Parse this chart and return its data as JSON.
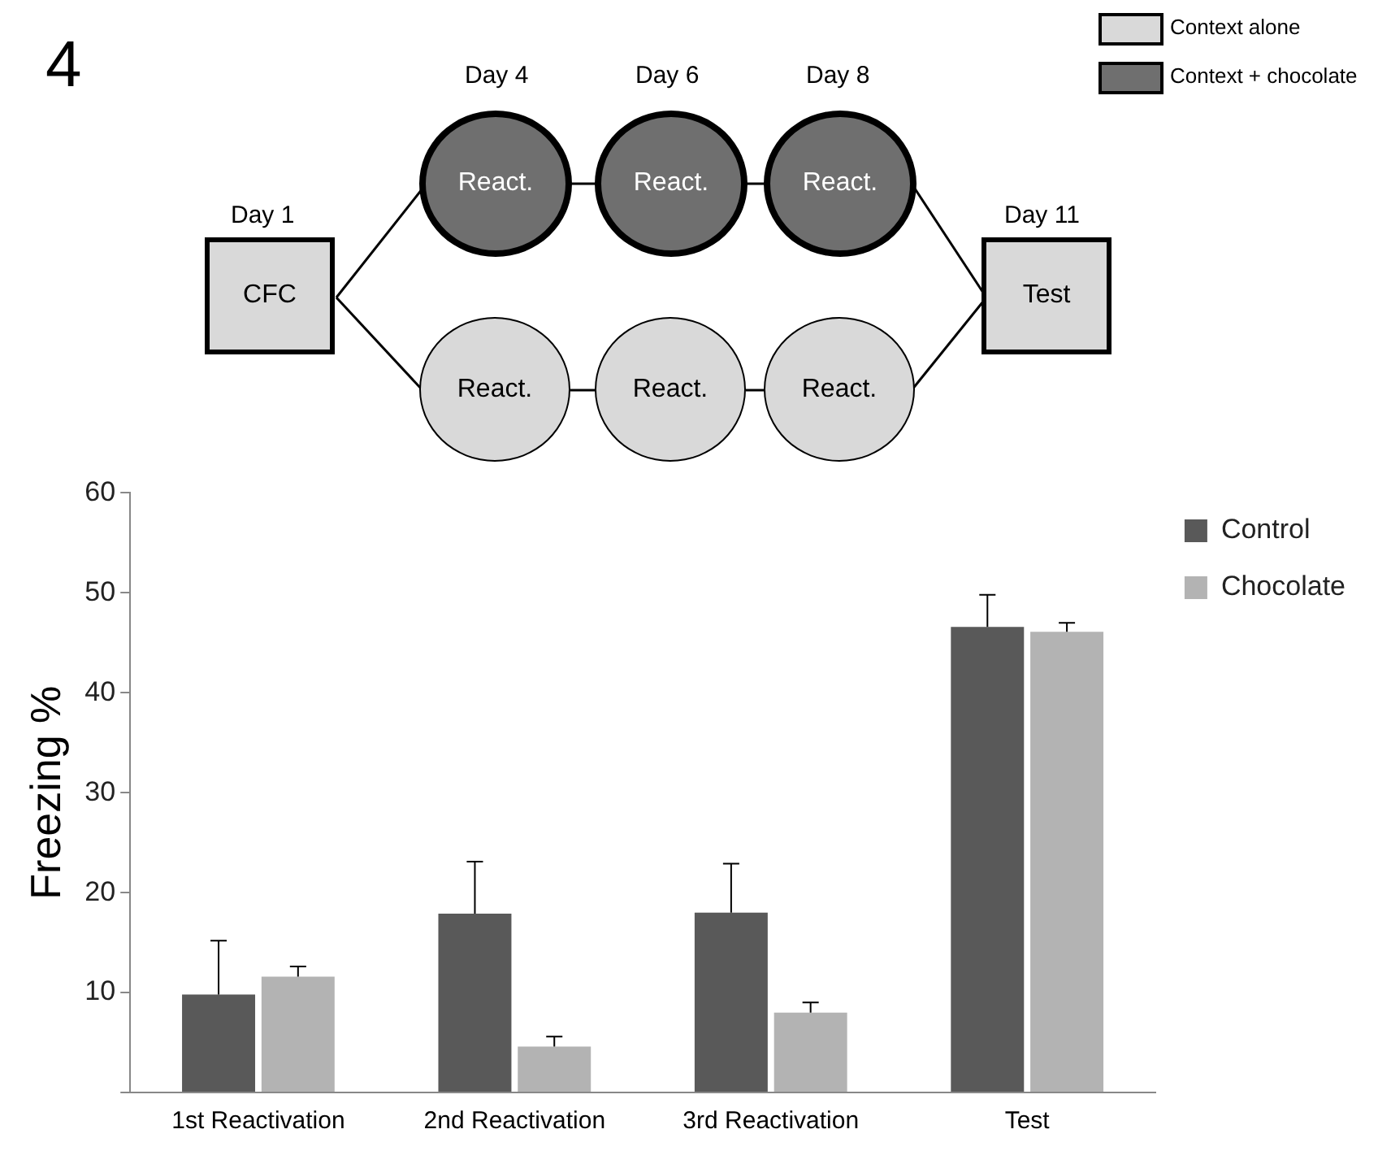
{
  "chart_data": {
    "type": "bar",
    "ylabel": "Freezing %",
    "categories": [
      "1st Reactivation",
      "2nd Reactivation",
      "3rd Reactivation",
      "Test"
    ],
    "series": [
      {
        "name": "Control",
        "color": "#595959",
        "values": [
          9.8,
          17.9,
          18.0,
          46.6
        ],
        "errors": [
          [
            9.8,
            15.2
          ],
          [
            17.9,
            23.1
          ],
          [
            18.0,
            22.9
          ],
          [
            46.6,
            49.8
          ]
        ]
      },
      {
        "name": "Chocolate",
        "color": "#b3b3b3",
        "values": [
          11.6,
          4.6,
          8.0,
          46.1
        ],
        "errors": [
          [
            11.6,
            12.6
          ],
          [
            4.6,
            5.6
          ],
          [
            8.0,
            9.0
          ],
          [
            46.1,
            47.0
          ]
        ]
      }
    ],
    "ylim": [
      0,
      60
    ],
    "yticks": [
      {
        "value": 0,
        "label": null
      },
      10,
      20,
      30,
      40,
      50,
      60
    ],
    "grid": false,
    "legend": "top right",
    "annotations": [
      "4",
      "Context alone",
      "Context + chocolate",
      "Day 1",
      "CFC",
      "Day 4",
      "Day 6",
      "Day 8",
      "React.",
      "React.",
      "React.",
      "React.",
      "React.",
      "React.",
      "Day 11",
      "Test"
    ]
  }
}
